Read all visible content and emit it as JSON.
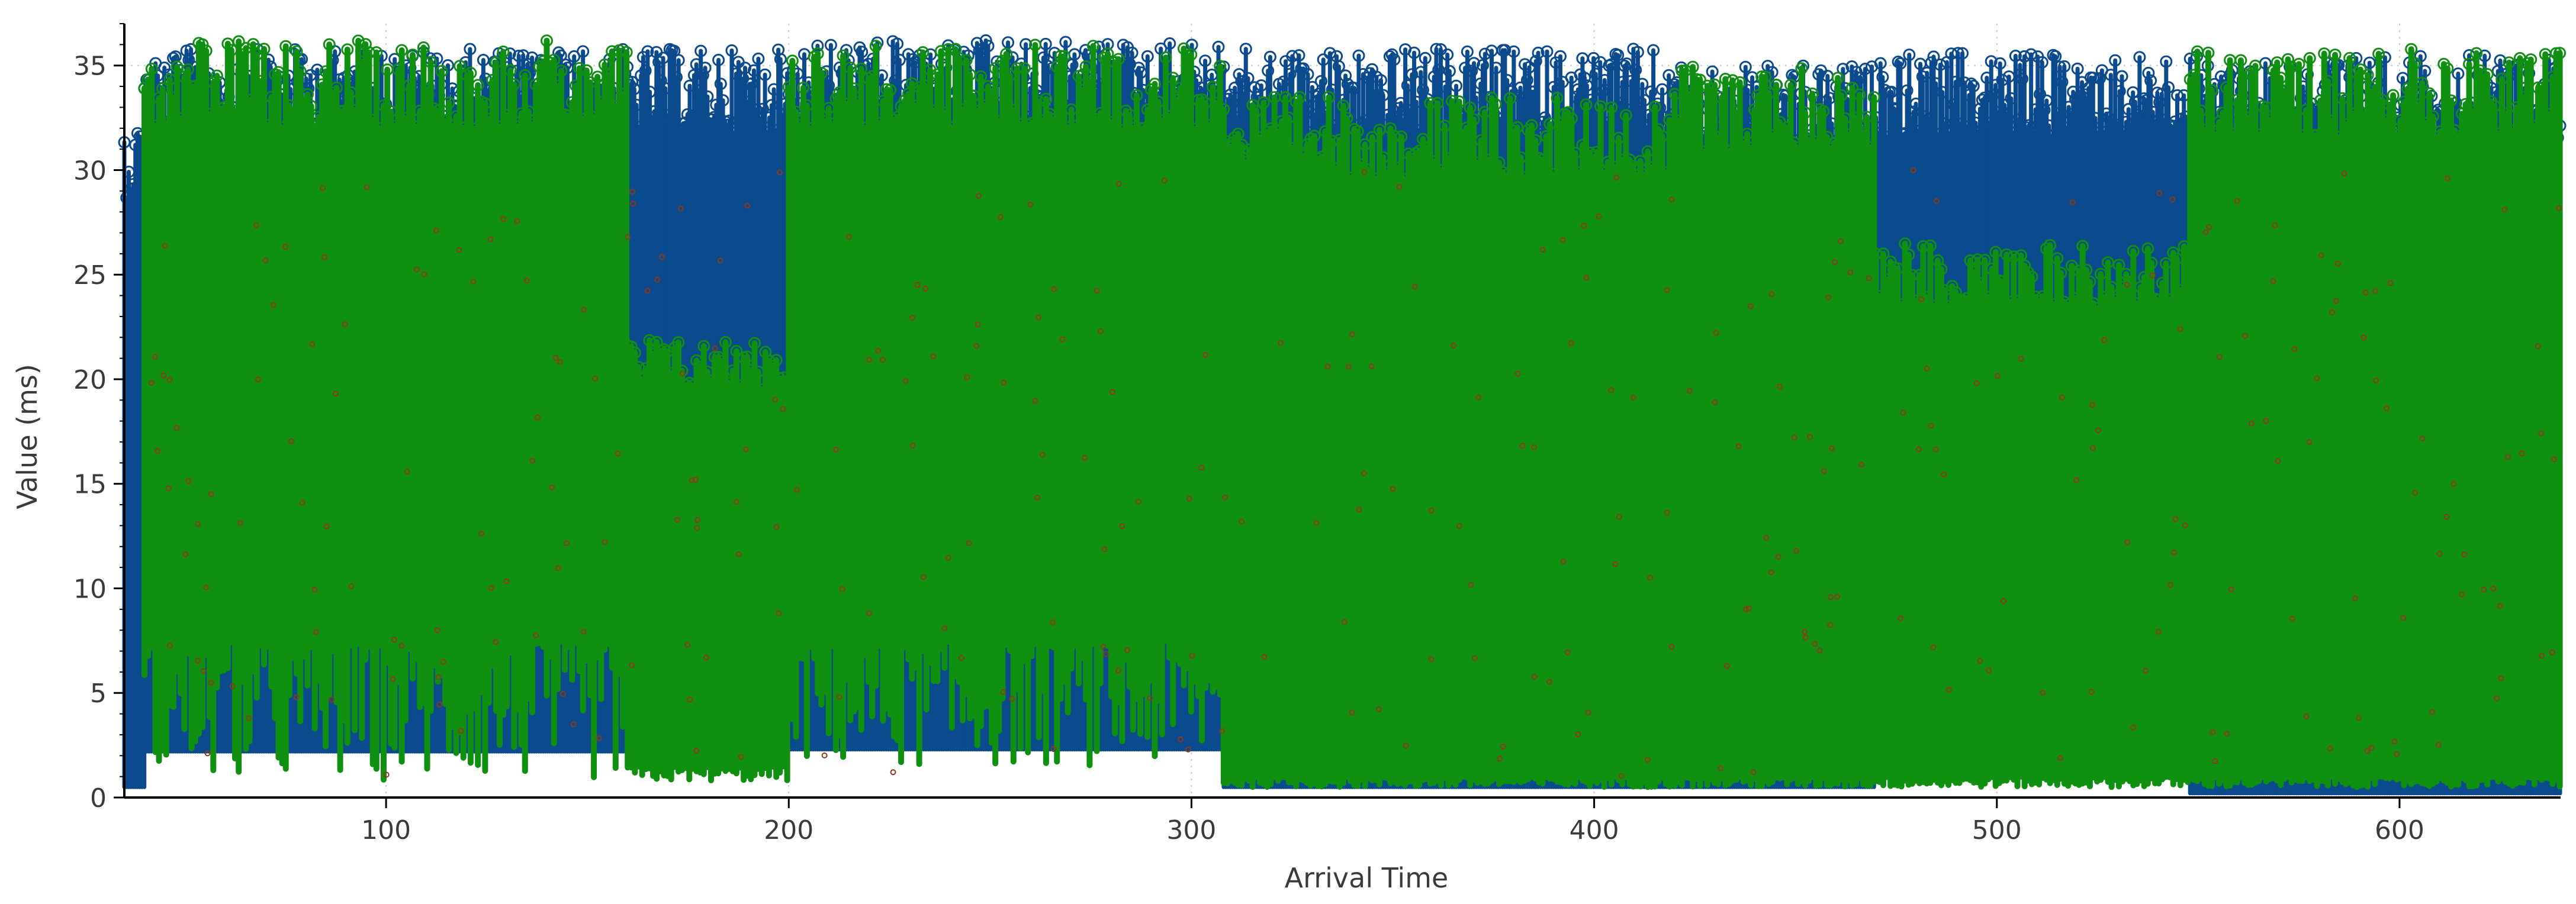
{
  "chart_data": {
    "type": "scatter",
    "title": "",
    "xlabel": "Arrival Time",
    "ylabel": "Value (ms)",
    "xlim": [
      35,
      640
    ],
    "ylim": [
      0,
      37
    ],
    "x_ticks": [
      100,
      200,
      300,
      400,
      500,
      600
    ],
    "x_tick_labels": [
      "100",
      "200",
      "300",
      "400",
      "500",
      "600"
    ],
    "y_ticks": [
      0,
      5,
      10,
      15,
      20,
      25,
      30,
      35
    ],
    "y_tick_labels": [
      "0",
      "5",
      "10",
      "15",
      "20",
      "25",
      "30",
      "35"
    ],
    "grid": true,
    "legend": "none",
    "colors": {
      "series_1": "#0b4a8c",
      "series_2": "#109010",
      "series_3": "#8b3a1a"
    },
    "series": [
      {
        "color": "#0b4a8c",
        "marker": "open-circle-with-stems",
        "segments": [
          {
            "x_range": [
              35,
              40
            ],
            "y_range": [
              0.5,
              32.5
            ]
          },
          {
            "x_range": [
              40,
              160
            ],
            "y_range": [
              2.2,
              35.8
            ]
          },
          {
            "x_range": [
              160,
              200
            ],
            "y_range": [
              2.2,
              35.8
            ]
          },
          {
            "x_range": [
              200,
              308
            ],
            "y_range": [
              2.3,
              36.2
            ]
          },
          {
            "x_range": [
              308,
              420
            ],
            "y_range": [
              0.5,
              35.8
            ]
          },
          {
            "x_range": [
              420,
              470
            ],
            "y_range": [
              0.5,
              35.0
            ]
          },
          {
            "x_range": [
              470,
              548
            ],
            "y_range": [
              2.0,
              35.6
            ]
          },
          {
            "x_range": [
              548,
              640
            ],
            "y_range": [
              0.2,
              35.5
            ]
          }
        ]
      },
      {
        "color": "#109010",
        "marker": "open-circle-with-stems",
        "segments": [
          {
            "x_range": [
              40,
              160
            ],
            "y_range": [
              0.8,
              36.2
            ],
            "dense_floor": 7.5
          },
          {
            "x_range": [
              160,
              200
            ],
            "y_range": [
              0.8,
              22.0
            ],
            "dense_floor": 1.5
          },
          {
            "x_range": [
              200,
              308
            ],
            "y_range": [
              1.5,
              36.0
            ],
            "dense_floor": 7.5
          },
          {
            "x_range": [
              308,
              420
            ],
            "y_range": [
              0.5,
              33.5
            ],
            "dense_floor": 1.0
          },
          {
            "x_range": [
              420,
              470
            ],
            "y_range": [
              0.5,
              35.0
            ],
            "dense_floor": 1.0
          },
          {
            "x_range": [
              470,
              548
            ],
            "y_range": [
              0.5,
              26.5
            ],
            "dense_floor": 1.0
          },
          {
            "x_range": [
              548,
              640
            ],
            "y_range": [
              0.5,
              35.8
            ],
            "dense_floor": 1.0
          }
        ]
      },
      {
        "color": "#8b3a1a",
        "marker": "sparse",
        "segments": [
          {
            "x_range": [
              40,
              640
            ],
            "y_range": [
              1.0,
              30.0
            ]
          }
        ]
      }
    ]
  }
}
